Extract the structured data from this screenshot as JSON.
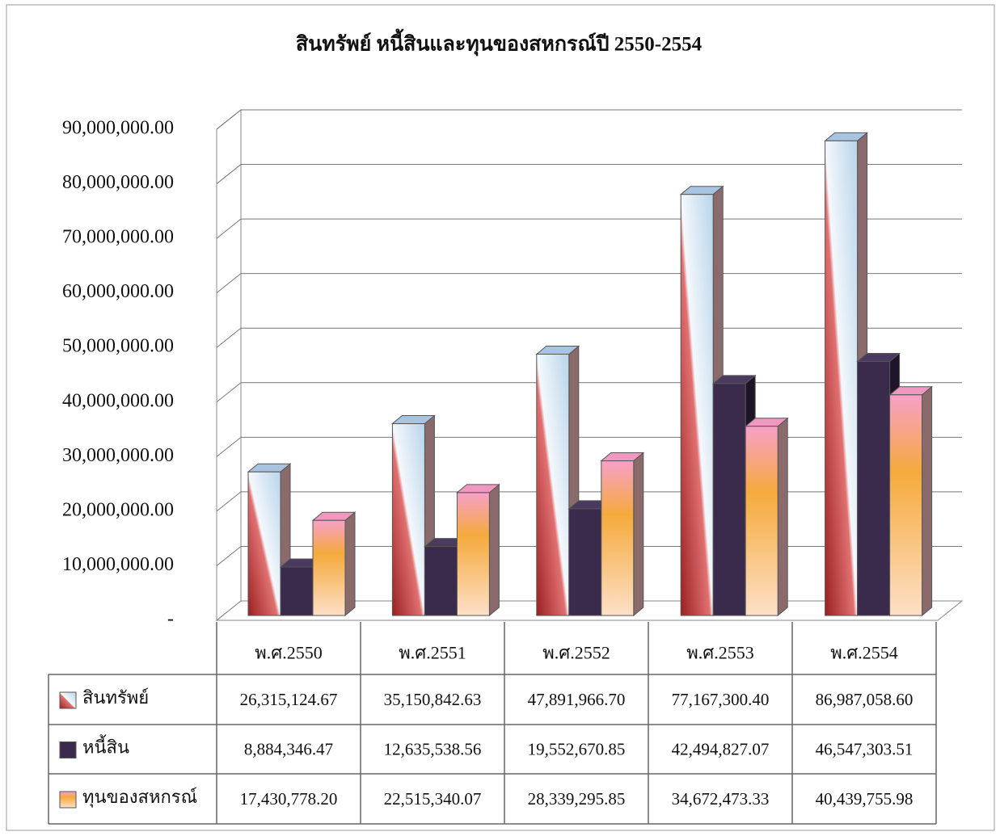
{
  "chart_data": {
    "type": "bar3d",
    "title": "สินทรัพย์ หนี้สินและทุนของสหกรณ์ปี 2550-2554",
    "categories": [
      "พ.ศ.2550",
      "พ.ศ.2551",
      "พ.ศ.2552",
      "พ.ศ.2553",
      "พ.ศ.2554"
    ],
    "series": [
      {
        "name": "สินทรัพย์",
        "color": "#b8d4ea",
        "values": [
          26315124.67,
          35150842.63,
          47891966.7,
          77167300.4,
          86987058.6
        ],
        "value_labels": [
          "26,315,124.67",
          "35,150,842.63",
          "47,891,966.70",
          "77,167,300.40",
          "86,987,058.60"
        ]
      },
      {
        "name": "หนี้สิน",
        "color": "#3a2a4c",
        "values": [
          8884346.47,
          12635538.56,
          19552670.85,
          42494827.07,
          46547303.51
        ],
        "value_labels": [
          "8,884,346.47",
          "12,635,538.56",
          "19,552,670.85",
          "42,494,827.07",
          "46,547,303.51"
        ]
      },
      {
        "name": "ทุนของสหกรณ์",
        "color": "#f5aa3c",
        "values": [
          17430778.2,
          22515340.07,
          28339295.85,
          34672473.33,
          40439755.98
        ],
        "value_labels": [
          "17,430,778.20",
          "22,515,340.07",
          "28,339,295.85",
          "34,672,473.33",
          "40,439,755.98"
        ]
      }
    ],
    "ylim": [
      0,
      90000000
    ],
    "yticks": [
      {
        "value": 0,
        "label": "-"
      },
      {
        "value": 10000000,
        "label": "10,000,000.00"
      },
      {
        "value": 20000000,
        "label": "20,000,000.00"
      },
      {
        "value": 30000000,
        "label": "30,000,000.00"
      },
      {
        "value": 40000000,
        "label": "40,000,000.00"
      },
      {
        "value": 50000000,
        "label": "50,000,000.00"
      },
      {
        "value": 60000000,
        "label": "60,000,000.00"
      },
      {
        "value": 70000000,
        "label": "70,000,000.00"
      },
      {
        "value": 80000000,
        "label": "80,000,000.00"
      },
      {
        "value": 90000000,
        "label": "90,000,000.00"
      }
    ],
    "grid": true
  }
}
